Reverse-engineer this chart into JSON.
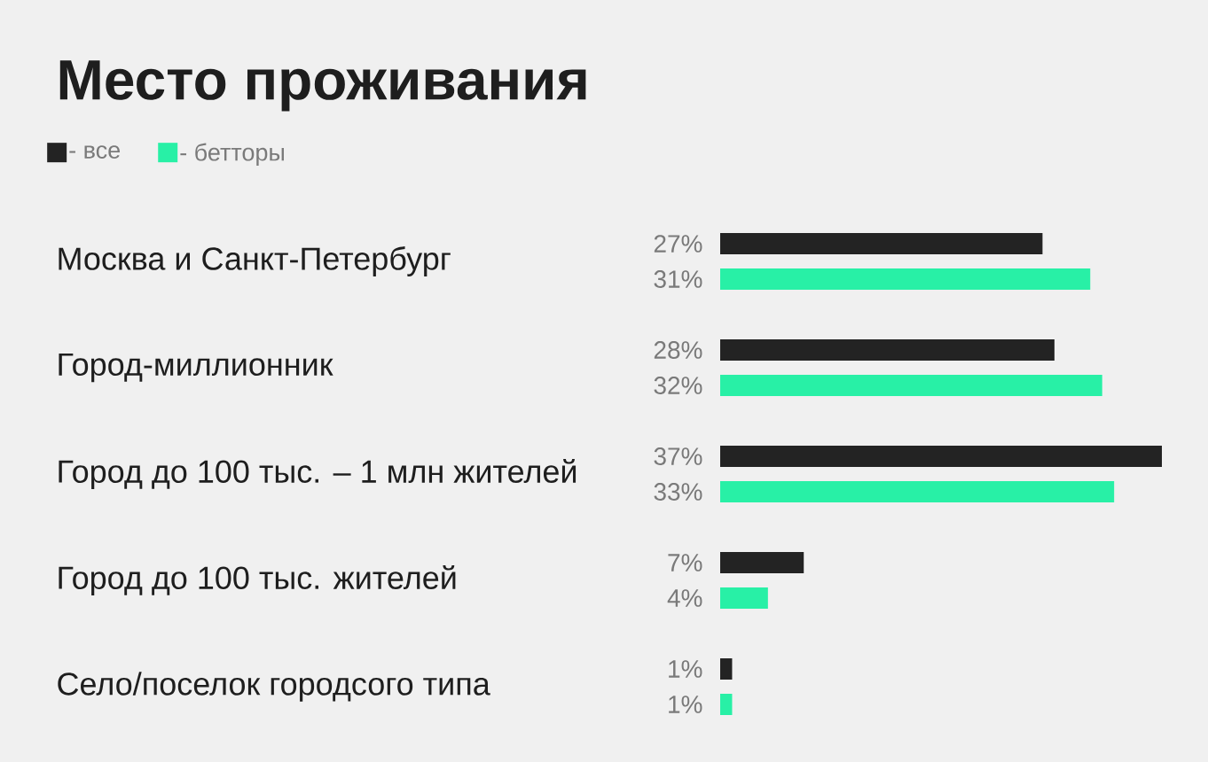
{
  "chart_data": {
    "type": "bar",
    "orientation": "horizontal",
    "title": "Место проживания",
    "legend": "top left",
    "categories": [
      "Москва и Санкт-Петербург",
      "Город-миллионник",
      "Город до 100 тыс. – 1 млн жителей",
      "Город до 100 тыс. жителей",
      "Село/поселок городсого типа"
    ],
    "series": [
      {
        "name": "- все",
        "color": "#232323",
        "values": [
          27,
          28,
          37,
          7,
          1
        ],
        "value_labels": [
          "27%",
          "28%",
          "37%",
          "7%",
          "1%"
        ]
      },
      {
        "name": "- бетторы",
        "color": "#28f0a6",
        "values": [
          31,
          32,
          33,
          4,
          1
        ],
        "value_labels": [
          "31%",
          "32%",
          "33%",
          "4%",
          "1%"
        ]
      }
    ]
  }
}
